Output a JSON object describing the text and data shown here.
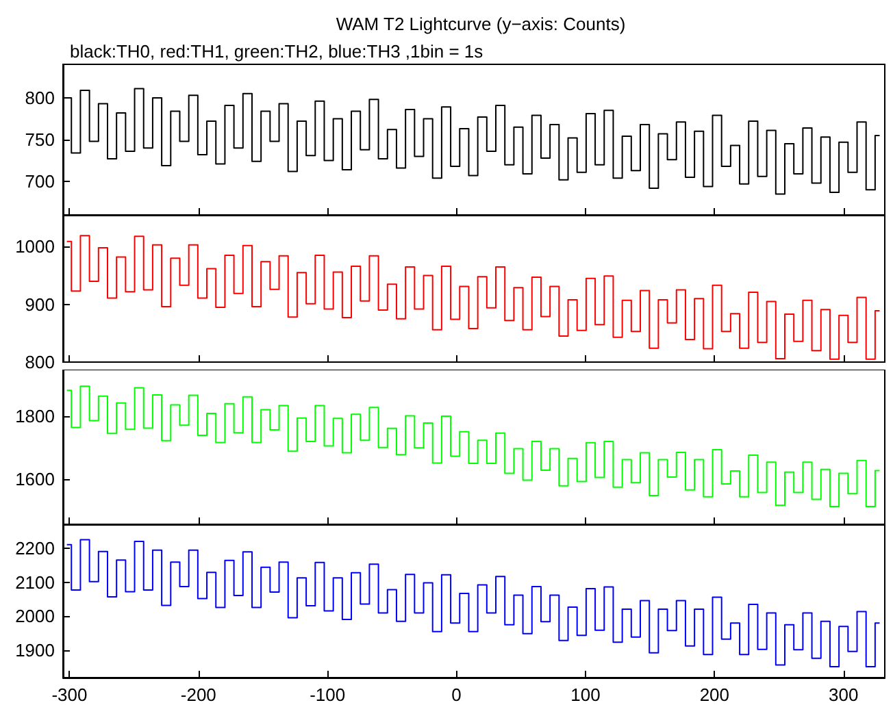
{
  "chart_data": [
    {
      "type": "step",
      "title": "WAM T2 Lightcurve (y−axis: Counts)",
      "subtitle": "black:TH0, red:TH1, green:TH2, blue:TH3 ,1bin = 1s",
      "xlim": [
        -305,
        332
      ],
      "xticks": [
        -300,
        -200,
        -100,
        0,
        100,
        200,
        300
      ],
      "ylim": [
        660,
        840
      ],
      "yticks": [
        700,
        750,
        800
      ],
      "tick_labels": "y",
      "x": [
        -302,
        -295,
        -288,
        -281,
        -274,
        -267,
        -260,
        -253,
        -246,
        -239,
        -232,
        -225,
        -218,
        -211,
        -204,
        -197,
        -190,
        -183,
        -176,
        -169,
        -162,
        -155,
        -148,
        -141,
        -134,
        -127,
        -120,
        -113,
        -106,
        -99,
        -92,
        -85,
        -78,
        -71,
        -64,
        -57,
        -50,
        -43,
        -36,
        -29,
        -22,
        -15,
        -8,
        -1,
        6,
        13,
        20,
        27,
        34,
        41,
        48,
        55,
        62,
        69,
        76,
        83,
        90,
        97,
        104,
        111,
        118,
        125,
        132,
        139,
        146,
        153,
        160,
        167,
        174,
        181,
        188,
        195,
        202,
        209,
        216,
        223,
        230,
        237,
        244,
        251,
        258,
        265,
        272,
        279,
        286,
        293,
        300,
        307,
        314,
        321,
        328
      ],
      "series": [
        {
          "color": "#000000",
          "values": [
            800,
            734,
            809,
            748,
            793,
            727,
            782,
            736,
            811,
            740,
            800,
            719,
            784,
            748,
            803,
            732,
            772,
            721,
            791,
            740,
            805,
            724,
            784,
            748,
            793,
            712,
            772,
            731,
            796,
            725,
            775,
            714,
            784,
            738,
            798,
            727,
            762,
            716,
            786,
            730,
            775,
            704,
            789,
            718,
            763,
            707,
            777,
            736,
            791,
            720,
            765,
            709,
            779,
            728,
            768,
            702,
            752,
            711,
            781,
            720,
            785,
            704,
            754,
            713,
            768,
            692,
            757,
            726,
            771,
            705,
            760,
            694,
            779,
            718,
            743,
            697,
            772,
            706,
            761,
            685,
            745,
            709,
            764,
            698,
            753,
            687,
            747,
            711,
            771,
            690,
            755
          ]
        }
      ]
    },
    {
      "type": "step",
      "xlim": [
        -305,
        332
      ],
      "xticks": [
        -300,
        -200,
        -100,
        0,
        100,
        200,
        300
      ],
      "ylim": [
        800,
        1055
      ],
      "yticks": [
        800,
        900,
        1000
      ],
      "tick_labels": "y",
      "x": [
        -302,
        -295,
        -288,
        -281,
        -274,
        -267,
        -260,
        -253,
        -246,
        -239,
        -232,
        -225,
        -218,
        -211,
        -204,
        -197,
        -190,
        -183,
        -176,
        -169,
        -162,
        -155,
        -148,
        -141,
        -134,
        -127,
        -120,
        -113,
        -106,
        -99,
        -92,
        -85,
        -78,
        -71,
        -64,
        -57,
        -50,
        -43,
        -36,
        -29,
        -22,
        -15,
        -8,
        -1,
        6,
        13,
        20,
        27,
        34,
        41,
        48,
        55,
        62,
        69,
        76,
        83,
        90,
        97,
        104,
        111,
        118,
        125,
        132,
        139,
        146,
        153,
        160,
        167,
        174,
        181,
        188,
        195,
        202,
        209,
        216,
        223,
        230,
        237,
        244,
        251,
        258,
        265,
        272,
        279,
        286,
        293,
        300,
        307,
        314,
        321,
        328
      ],
      "series": [
        {
          "color": "#ff0000",
          "values": [
            1009,
            923,
            1019,
            940,
            998,
            911,
            982,
            922,
            1018,
            925,
            1003,
            896,
            980,
            933,
            1003,
            911,
            962,
            895,
            985,
            919,
            1002,
            896,
            974,
            926,
            984,
            878,
            955,
            901,
            985,
            892,
            956,
            877,
            966,
            906,
            984,
            890,
            935,
            875,
            965,
            892,
            950,
            856,
            966,
            874,
            931,
            858,
            948,
            894,
            965,
            872,
            929,
            856,
            947,
            879,
            931,
            845,
            908,
            855,
            945,
            865,
            949,
            843,
            907,
            853,
            924,
            824,
            908,
            868,
            925,
            839,
            910,
            823,
            933,
            853,
            884,
            824,
            921,
            834,
            905,
            806,
            883,
            836,
            907,
            820,
            891,
            805,
            881,
            834,
            912,
            805,
            889
          ]
        }
      ]
    },
    {
      "type": "step",
      "xlim": [
        -305,
        332
      ],
      "xticks": [
        -300,
        -200,
        -100,
        0,
        100,
        200,
        300
      ],
      "ylim": [
        1455,
        1950
      ],
      "yticks": [
        1600,
        1800
      ],
      "tick_labels": "y",
      "x": [
        -302,
        -295,
        -288,
        -281,
        -274,
        -267,
        -260,
        -253,
        -246,
        -239,
        -232,
        -225,
        -218,
        -211,
        -204,
        -197,
        -190,
        -183,
        -176,
        -169,
        -162,
        -155,
        -148,
        -141,
        -134,
        -127,
        -120,
        -113,
        -106,
        -99,
        -92,
        -85,
        -78,
        -71,
        -64,
        -57,
        -50,
        -43,
        -36,
        -29,
        -22,
        -15,
        -8,
        -1,
        6,
        13,
        20,
        27,
        34,
        41,
        48,
        55,
        62,
        69,
        76,
        83,
        90,
        97,
        104,
        111,
        118,
        125,
        132,
        139,
        146,
        153,
        160,
        167,
        174,
        181,
        188,
        195,
        202,
        209,
        216,
        223,
        230,
        237,
        244,
        251,
        258,
        265,
        272,
        279,
        286,
        293,
        300,
        307,
        314,
        321,
        328
      ],
      "series": [
        {
          "color": "#00ff00",
          "values": [
            1884,
            1765,
            1897,
            1787,
            1865,
            1746,
            1843,
            1759,
            1892,
            1763,
            1869,
            1723,
            1837,
            1772,
            1868,
            1740,
            1810,
            1717,
            1841,
            1748,
            1863,
            1717,
            1822,
            1757,
            1835,
            1689,
            1795,
            1720,
            1835,
            1706,
            1794,
            1684,
            1807,
            1724,
            1829,
            1701,
            1762,
            1678,
            1802,
            1700,
            1779,
            1651,
            1801,
            1673,
            1751,
            1650,
            1724,
            1650,
            1747,
            1618,
            1697,
            1596,
            1720,
            1628,
            1697,
            1578,
            1666,
            1592,
            1716,
            1605,
            1720,
            1574,
            1662,
            1588,
            1684,
            1547,
            1662,
            1606,
            1685,
            1565,
            1662,
            1543,
            1694,
            1584,
            1626,
            1543,
            1676,
            1557,
            1654,
            1516,
            1622,
            1557,
            1654,
            1535,
            1631,
            1512,
            1618,
            1553,
            1659,
            1512,
            1627
          ]
        }
      ]
    },
    {
      "type": "step",
      "xlim": [
        -305,
        332
      ],
      "xticks": [
        -300,
        -200,
        -100,
        0,
        100,
        200,
        300
      ],
      "ylim": [
        1820,
        2270
      ],
      "yticks": [
        1900,
        2000,
        2100,
        2200
      ],
      "x": [
        -302,
        -295,
        -288,
        -281,
        -274,
        -267,
        -260,
        -253,
        -246,
        -239,
        -232,
        -225,
        -218,
        -211,
        -204,
        -197,
        -190,
        -183,
        -176,
        -169,
        -162,
        -155,
        -148,
        -141,
        -134,
        -127,
        -120,
        -113,
        -106,
        -99,
        -92,
        -85,
        -78,
        -71,
        -64,
        -57,
        -50,
        -43,
        -36,
        -29,
        -22,
        -15,
        -8,
        -1,
        6,
        13,
        20,
        27,
        34,
        41,
        48,
        55,
        62,
        69,
        76,
        83,
        90,
        97,
        104,
        111,
        118,
        125,
        132,
        139,
        146,
        153,
        160,
        167,
        174,
        181,
        188,
        195,
        202,
        209,
        216,
        223,
        230,
        237,
        244,
        251,
        258,
        265,
        272,
        279,
        286,
        293,
        300,
        307,
        314,
        321,
        328
      ],
      "series": [
        {
          "color": "#0000ff",
          "values": [
            2210,
            2077,
            2225,
            2102,
            2190,
            2057,
            2165,
            2072,
            2220,
            2077,
            2194,
            2032,
            2159,
            2087,
            2194,
            2052,
            2129,
            2026,
            2164,
            2061,
            2189,
            2026,
            2144,
            2071,
            2159,
            1996,
            2113,
            2031,
            2158,
            2016,
            2113,
            1991,
            2128,
            2036,
            2153,
            2010,
            2078,
            1985,
            2123,
            2010,
            2098,
            1955,
            2122,
            1980,
            2067,
            1955,
            2092,
            2010,
            2117,
            1975,
            2062,
            1949,
            2087,
            1984,
            2062,
            1929,
            2027,
            1944,
            2081,
            1959,
            2086,
            1924,
            2021,
            1939,
            2046,
            1893,
            2021,
            1958,
            2046,
            1913,
            2021,
            1888,
            2056,
            1933,
            1980,
            1888,
            2035,
            1903,
            2010,
            1857,
            1975,
            1902,
            2010,
            1877,
            1985,
            1852,
            1970,
            1897,
            2014,
            1852,
            1980
          ]
        }
      ]
    }
  ]
}
